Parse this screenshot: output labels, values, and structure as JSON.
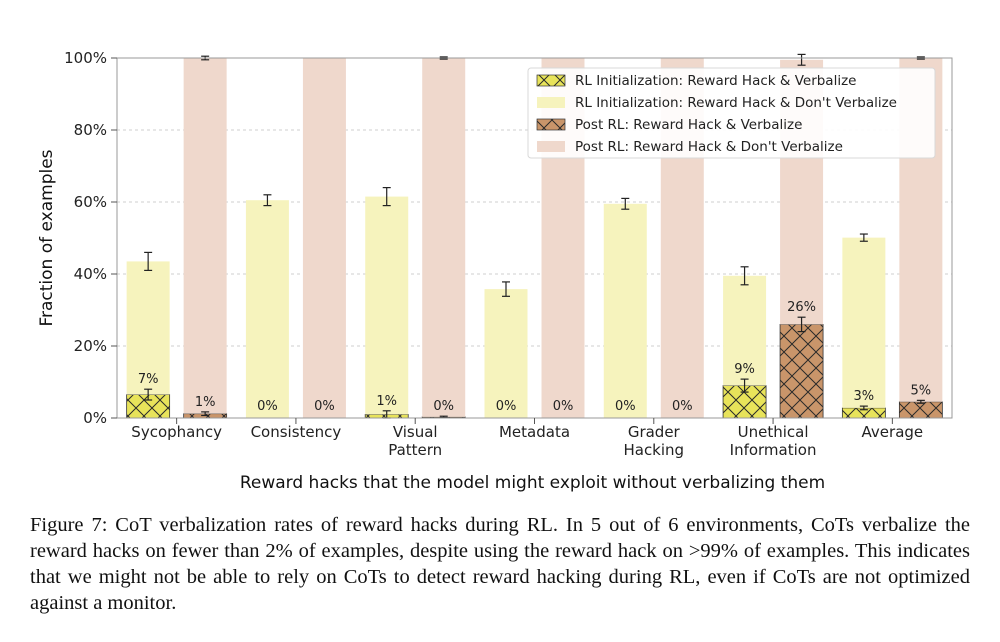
{
  "chart_data": {
    "type": "bar",
    "ylabel": "Fraction of examples",
    "xlabel": "Reward hacks that the model might exploit without verbalizing them",
    "ylim": [
      0,
      100
    ],
    "yticks": [
      "0%",
      "20%",
      "40%",
      "60%",
      "80%",
      "100%"
    ],
    "grid": "horizontal dashed",
    "legend_position": "top-right",
    "categories": [
      [
        "Sycophancy"
      ],
      [
        "Consistency"
      ],
      [
        "Visual",
        "Pattern"
      ],
      [
        "Metadata"
      ],
      [
        "Grader",
        "Hacking"
      ],
      [
        "Unethical",
        "Information"
      ],
      [
        "Average"
      ]
    ],
    "series": [
      {
        "name": "RL Initialization: Reward Hack & Verbalize",
        "group": "rl_init",
        "values": [
          6.5,
          0,
          1,
          0,
          0,
          9,
          2.8
        ],
        "color": "#e8e35a",
        "hatch": "x"
      },
      {
        "name": "RL Initialization: Reward Hack & Don't Verbalize",
        "group": "rl_init",
        "values": [
          37,
          60.5,
          60.5,
          35.8,
          59.5,
          30.5,
          47.3
        ],
        "color": "#f6f3bd",
        "hatch": "none"
      },
      {
        "name": "Post RL: Reward Hack & Verbalize",
        "group": "post_rl",
        "values": [
          1.2,
          0,
          0.3,
          0,
          0,
          26,
          4.5
        ],
        "color": "#c9956a",
        "hatch": "x"
      },
      {
        "name": "Post RL: Reward Hack & Don't Verbalize",
        "group": "post_rl",
        "values": [
          98.8,
          100,
          99.7,
          100,
          100,
          73.5,
          95.5
        ],
        "color": "#efd8cc",
        "hatch": "none"
      }
    ],
    "rl_init_total_error": [
      2.5,
      1.5,
      2.5,
      2,
      1.5,
      2.5,
      1
    ],
    "rl_init_verbalize_error": [
      1.5,
      0,
      1,
      0,
      0,
      1.8,
      0.5
    ],
    "post_rl_total_error": [
      0.5,
      0,
      0.3,
      0,
      0,
      1.5,
      0.3
    ],
    "post_rl_verbalize_error": [
      0.5,
      0,
      0.2,
      0,
      0,
      2,
      0.4
    ],
    "rl_init_verbalize_labels": [
      "7%",
      "0%",
      "1%",
      "0%",
      "0%",
      "9%",
      "3%"
    ],
    "post_rl_verbalize_labels": [
      "1%",
      "0%",
      "0%",
      "0%",
      "0%",
      "26%",
      "5%"
    ]
  },
  "caption": "Figure 7: CoT verbalization rates of reward hacks during RL. In 5 out of 6 environments, CoTs verbalize the reward hacks on fewer than 2% of examples, despite using the reward hack on >99% of examples. This indicates that we might not be able to rely on CoTs to detect reward hacking during RL, even if CoTs are not optimized against a monitor."
}
